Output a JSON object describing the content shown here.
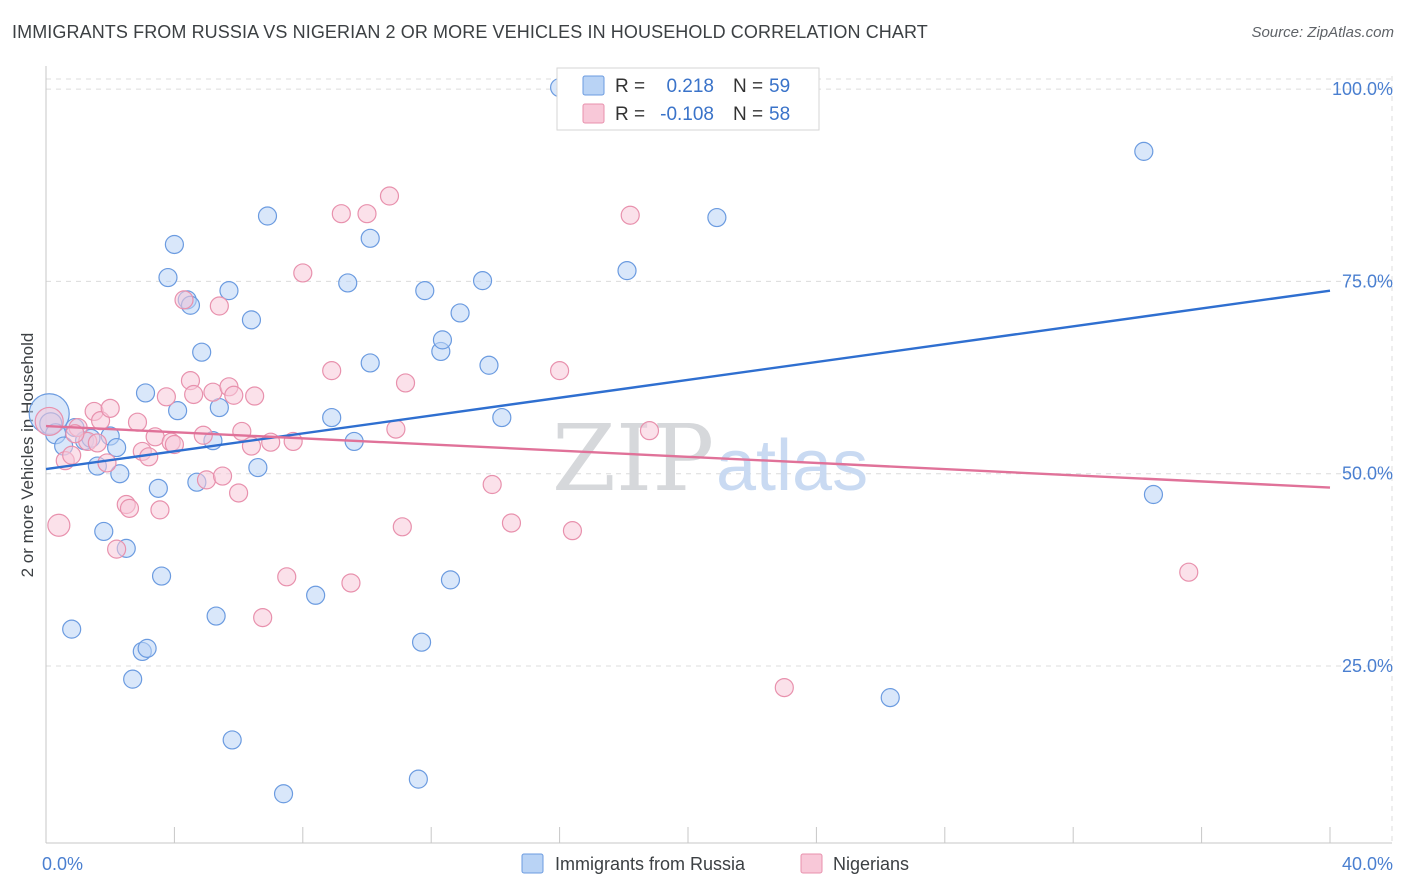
{
  "title": "IMMIGRANTS FROM RUSSIA VS NIGERIAN 2 OR MORE VEHICLES IN HOUSEHOLD CORRELATION CHART",
  "source": "Source: ZipAtlas.com",
  "watermark": {
    "zip": "ZIP",
    "atlas": "atlas"
  },
  "legend": {
    "r_label": "R =",
    "n_label": "N =",
    "rows": [
      {
        "r": "0.218",
        "n": "59",
        "fill": "#b9d3f5",
        "stroke": "#6b9be0"
      },
      {
        "r": "-0.108",
        "n": "58",
        "fill": "#f8c8d8",
        "stroke": "#e891ad"
      }
    ]
  },
  "chart_data": {
    "type": "scatter",
    "title": "IMMIGRANTS FROM RUSSIA VS NIGERIAN 2 OR MORE VEHICLES IN HOUSEHOLD CORRELATION CHART",
    "xlabel": "",
    "ylabel": "2 or more Vehicles in Household",
    "xlim": [
      0,
      40
    ],
    "ylim": [
      2,
      103
    ],
    "x_tick_labels": [
      {
        "value": 0,
        "label": "0.0%"
      },
      {
        "value": 40,
        "label": "40.0%"
      }
    ],
    "y_tick_labels": [
      {
        "value": 100,
        "label": "100.0%"
      },
      {
        "value": 75,
        "label": "75.0%"
      },
      {
        "value": 50,
        "label": "50.0%"
      },
      {
        "value": 25,
        "label": "25.0%"
      }
    ],
    "grid": true,
    "legend_position": "top-center",
    "series": [
      {
        "name": "Immigrants from Russia",
        "color": "#6b9be0",
        "fill": "#b9d3f5",
        "trend": {
          "x": [
            0,
            40
          ],
          "y": [
            50.6,
            73.8
          ],
          "color": "#2f6fd0"
        },
        "points": [
          {
            "x": 0.1,
            "y": 57.8,
            "r": 20
          },
          {
            "x": 0.15,
            "y": 56.5,
            "r": 11
          },
          {
            "x": 0.3,
            "y": 55.2,
            "r": 10
          },
          {
            "x": 0.55,
            "y": 53.6,
            "r": 9
          },
          {
            "x": 0.9,
            "y": 56.0,
            "r": 9
          },
          {
            "x": 1.2,
            "y": 54.3,
            "r": 9
          },
          {
            "x": 1.4,
            "y": 54.6,
            "r": 9
          },
          {
            "x": 1.6,
            "y": 51.0,
            "r": 9
          },
          {
            "x": 2.0,
            "y": 54.9,
            "r": 9
          },
          {
            "x": 2.2,
            "y": 53.4,
            "r": 9
          },
          {
            "x": 2.3,
            "y": 50.0,
            "r": 9
          },
          {
            "x": 0.8,
            "y": 29.8,
            "r": 9
          },
          {
            "x": 1.8,
            "y": 42.5,
            "r": 9
          },
          {
            "x": 2.5,
            "y": 40.3,
            "r": 9
          },
          {
            "x": 3.0,
            "y": 26.9,
            "r": 9
          },
          {
            "x": 3.15,
            "y": 27.3,
            "r": 9
          },
          {
            "x": 2.7,
            "y": 23.3,
            "r": 9
          },
          {
            "x": 3.5,
            "y": 48.1,
            "r": 9
          },
          {
            "x": 3.6,
            "y": 36.7,
            "r": 9
          },
          {
            "x": 3.1,
            "y": 60.5,
            "r": 9
          },
          {
            "x": 4.1,
            "y": 58.2,
            "r": 9
          },
          {
            "x": 3.8,
            "y": 75.5,
            "r": 9
          },
          {
            "x": 4.0,
            "y": 79.8,
            "r": 9
          },
          {
            "x": 4.4,
            "y": 72.6,
            "r": 9
          },
          {
            "x": 4.5,
            "y": 71.9,
            "r": 9
          },
          {
            "x": 4.7,
            "y": 48.9,
            "r": 9
          },
          {
            "x": 4.85,
            "y": 65.8,
            "r": 9
          },
          {
            "x": 5.2,
            "y": 54.3,
            "r": 9
          },
          {
            "x": 5.3,
            "y": 31.5,
            "r": 9
          },
          {
            "x": 5.4,
            "y": 58.6,
            "r": 9
          },
          {
            "x": 5.7,
            "y": 73.8,
            "r": 9
          },
          {
            "x": 5.8,
            "y": 15.4,
            "r": 9
          },
          {
            "x": 6.4,
            "y": 70.0,
            "r": 9
          },
          {
            "x": 6.6,
            "y": 50.8,
            "r": 9
          },
          {
            "x": 6.9,
            "y": 83.5,
            "r": 9
          },
          {
            "x": 7.4,
            "y": 8.4,
            "r": 9
          },
          {
            "x": 8.4,
            "y": 34.2,
            "r": 9
          },
          {
            "x": 8.9,
            "y": 57.3,
            "r": 9
          },
          {
            "x": 9.4,
            "y": 74.8,
            "r": 9
          },
          {
            "x": 9.6,
            "y": 54.2,
            "r": 9
          },
          {
            "x": 10.1,
            "y": 64.4,
            "r": 9
          },
          {
            "x": 10.1,
            "y": 80.6,
            "r": 9
          },
          {
            "x": 11.6,
            "y": 10.3,
            "r": 9
          },
          {
            "x": 11.7,
            "y": 28.1,
            "r": 9
          },
          {
            "x": 11.8,
            "y": 73.8,
            "r": 9
          },
          {
            "x": 12.3,
            "y": 65.9,
            "r": 9
          },
          {
            "x": 12.35,
            "y": 67.4,
            "r": 9
          },
          {
            "x": 12.6,
            "y": 36.2,
            "r": 9
          },
          {
            "x": 12.9,
            "y": 70.9,
            "r": 9
          },
          {
            "x": 13.6,
            "y": 75.1,
            "r": 9
          },
          {
            "x": 13.8,
            "y": 64.1,
            "r": 9
          },
          {
            "x": 14.2,
            "y": 57.3,
            "r": 9
          },
          {
            "x": 16.0,
            "y": 100.2,
            "r": 9
          },
          {
            "x": 18.1,
            "y": 76.4,
            "r": 9
          },
          {
            "x": 20.9,
            "y": 83.3,
            "r": 9
          },
          {
            "x": 26.3,
            "y": 20.9,
            "r": 9
          },
          {
            "x": 34.2,
            "y": 91.9,
            "r": 9
          },
          {
            "x": 34.5,
            "y": 47.3,
            "r": 9
          },
          {
            "x": 1.9,
            "y": 41.0,
            "r": 0
          }
        ]
      },
      {
        "name": "Nigerians",
        "color": "#e891ad",
        "fill": "#f8c8d8",
        "trend": {
          "x": [
            0,
            40
          ],
          "y": [
            56.2,
            48.2
          ],
          "color": "#e07299"
        },
        "points": [
          {
            "x": 0.1,
            "y": 56.8,
            "r": 14
          },
          {
            "x": 0.4,
            "y": 43.3,
            "r": 11
          },
          {
            "x": 0.6,
            "y": 51.7,
            "r": 9
          },
          {
            "x": 0.8,
            "y": 52.4,
            "r": 9
          },
          {
            "x": 1.0,
            "y": 56.0,
            "r": 9
          },
          {
            "x": 1.3,
            "y": 54.2,
            "r": 9
          },
          {
            "x": 1.5,
            "y": 58.1,
            "r": 9
          },
          {
            "x": 1.7,
            "y": 56.9,
            "r": 9
          },
          {
            "x": 1.9,
            "y": 51.4,
            "r": 9
          },
          {
            "x": 2.0,
            "y": 58.5,
            "r": 9
          },
          {
            "x": 2.2,
            "y": 40.2,
            "r": 9
          },
          {
            "x": 2.5,
            "y": 46.0,
            "r": 9
          },
          {
            "x": 2.6,
            "y": 45.5,
            "r": 9
          },
          {
            "x": 2.85,
            "y": 56.7,
            "r": 9
          },
          {
            "x": 3.0,
            "y": 52.9,
            "r": 9
          },
          {
            "x": 3.2,
            "y": 52.2,
            "r": 9
          },
          {
            "x": 3.4,
            "y": 54.8,
            "r": 9
          },
          {
            "x": 3.55,
            "y": 45.3,
            "r": 9
          },
          {
            "x": 3.75,
            "y": 60.0,
            "r": 9
          },
          {
            "x": 3.9,
            "y": 54.1,
            "r": 9
          },
          {
            "x": 4.0,
            "y": 53.8,
            "r": 9
          },
          {
            "x": 4.3,
            "y": 72.6,
            "r": 9
          },
          {
            "x": 4.5,
            "y": 62.1,
            "r": 9
          },
          {
            "x": 4.6,
            "y": 60.3,
            "r": 9
          },
          {
            "x": 4.9,
            "y": 55.0,
            "r": 9
          },
          {
            "x": 5.0,
            "y": 49.2,
            "r": 9
          },
          {
            "x": 5.2,
            "y": 60.6,
            "r": 9
          },
          {
            "x": 5.4,
            "y": 71.8,
            "r": 9
          },
          {
            "x": 5.5,
            "y": 49.7,
            "r": 9
          },
          {
            "x": 5.7,
            "y": 61.3,
            "r": 9
          },
          {
            "x": 5.85,
            "y": 60.2,
            "r": 9
          },
          {
            "x": 6.0,
            "y": 47.5,
            "r": 9
          },
          {
            "x": 6.1,
            "y": 55.5,
            "r": 9
          },
          {
            "x": 6.4,
            "y": 53.6,
            "r": 9
          },
          {
            "x": 6.5,
            "y": 60.1,
            "r": 9
          },
          {
            "x": 6.75,
            "y": 31.3,
            "r": 9
          },
          {
            "x": 7.0,
            "y": 54.1,
            "r": 9
          },
          {
            "x": 7.5,
            "y": 36.6,
            "r": 9
          },
          {
            "x": 7.7,
            "y": 54.2,
            "r": 9
          },
          {
            "x": 8.0,
            "y": 76.1,
            "r": 9
          },
          {
            "x": 8.9,
            "y": 63.4,
            "r": 9
          },
          {
            "x": 9.2,
            "y": 83.8,
            "r": 9
          },
          {
            "x": 9.5,
            "y": 35.8,
            "r": 9
          },
          {
            "x": 10.0,
            "y": 83.8,
            "r": 9
          },
          {
            "x": 10.7,
            "y": 86.1,
            "r": 9
          },
          {
            "x": 10.9,
            "y": 55.8,
            "r": 9
          },
          {
            "x": 11.1,
            "y": 43.1,
            "r": 9
          },
          {
            "x": 11.2,
            "y": 61.8,
            "r": 9
          },
          {
            "x": 13.9,
            "y": 48.6,
            "r": 9
          },
          {
            "x": 14.5,
            "y": 43.6,
            "r": 9
          },
          {
            "x": 16.0,
            "y": 63.4,
            "r": 9
          },
          {
            "x": 16.4,
            "y": 42.6,
            "r": 9
          },
          {
            "x": 18.2,
            "y": 83.6,
            "r": 9
          },
          {
            "x": 18.8,
            "y": 55.6,
            "r": 9
          },
          {
            "x": 23.0,
            "y": 22.2,
            "r": 9
          },
          {
            "x": 35.6,
            "y": 37.2,
            "r": 9
          },
          {
            "x": 0.9,
            "y": 55.2,
            "r": 9
          },
          {
            "x": 1.6,
            "y": 54.0,
            "r": 9
          }
        ]
      }
    ]
  }
}
